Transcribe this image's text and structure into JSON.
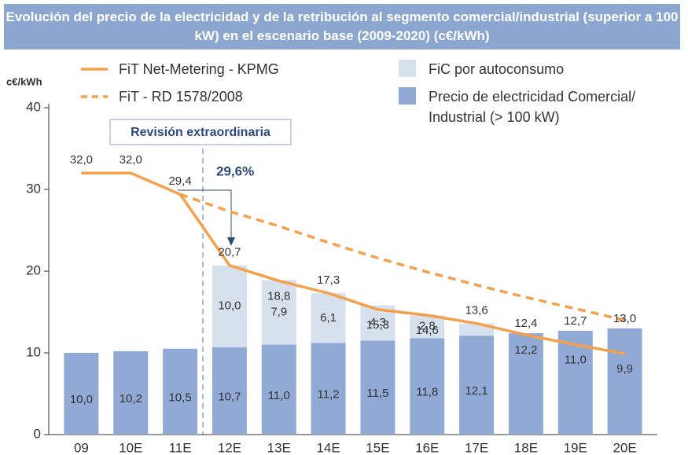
{
  "chart_data": {
    "type": "bar",
    "title": "Evolución del precio de la electricidad y de la retribución al segmento comercial/industrial (superior a 100 kW)  en el escenario base (2009-2020) (c€/kWh)",
    "y_label": "c€/kWh",
    "categories": [
      "09",
      "10E",
      "11E",
      "12E",
      "13E",
      "14E",
      "15E",
      "16E",
      "17E",
      "18E",
      "19E",
      "20E"
    ],
    "series": [
      {
        "name": "Precio de electricidad Comercial/ Industrial (> 100 kW)",
        "type": "bar",
        "color": "#90aad5",
        "values": [
          10.0,
          10.2,
          10.5,
          10.7,
          11.0,
          11.2,
          11.5,
          11.8,
          12.1,
          12.4,
          12.7,
          13.0
        ],
        "value_labels": [
          "10,0",
          "10,2",
          "10,5",
          "10,7",
          "11,0",
          "11,2",
          "11,5",
          "11,8",
          "12,1",
          "12,4",
          "12,7",
          "13,0"
        ]
      },
      {
        "name": "FiC por autoconsumo",
        "type": "bar",
        "color": "#d7e1ed",
        "values": [
          null,
          null,
          null,
          10.0,
          7.9,
          6.1,
          4.3,
          2.8,
          1.5,
          null,
          null,
          null
        ],
        "value_labels": [
          null,
          null,
          null,
          "10,0",
          "7,9",
          "6,1",
          "4,3",
          "2,8",
          null,
          null,
          null,
          null
        ]
      },
      {
        "name": "FiT Net-Metering - KPMG",
        "type": "line",
        "dashed": false,
        "color": "#f5a04a",
        "values": [
          32.0,
          32.0,
          29.4,
          20.7,
          18.8,
          17.3,
          15.3,
          14.6,
          13.6,
          12.2,
          11.0,
          9.9
        ],
        "value_labels": [
          "32,0",
          "32,0",
          "29,4",
          "20,7",
          "18,8",
          "17,3",
          "15,3",
          "14,6",
          "13,6",
          "12,2",
          "11,0",
          "9,9"
        ]
      },
      {
        "name": "FiT - RD 1578/2008",
        "type": "line",
        "dashed": true,
        "color": "#f5a04a",
        "values": [
          null,
          null,
          29.4,
          27.3,
          25.5,
          23.5,
          21.6,
          19.9,
          18.3,
          16.8,
          15.4,
          14.0
        ]
      }
    ],
    "annotations": [
      "Revisión extraordinaria",
      "29,6%"
    ],
    "ylim": [
      0,
      40
    ],
    "yticks": [
      0,
      10,
      20,
      30,
      40
    ],
    "grid": false
  }
}
